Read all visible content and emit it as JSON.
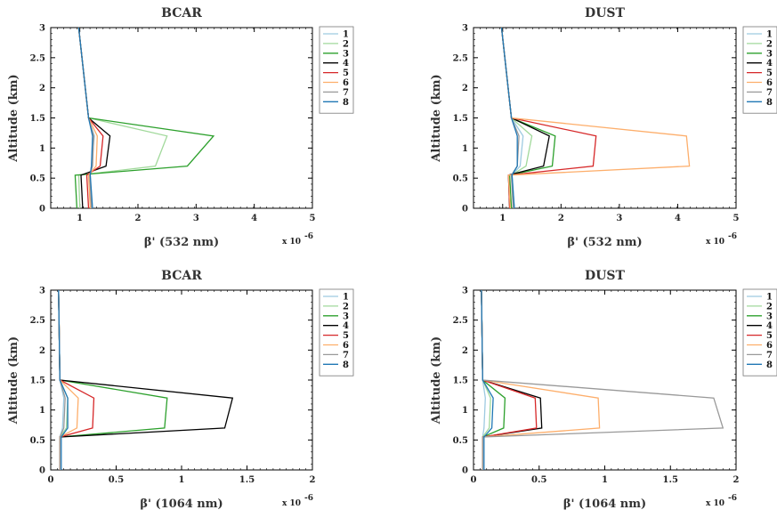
{
  "chart_data": [
    {
      "type": "line",
      "title": "BCAR",
      "xlabel": "β' (532 nm)",
      "ylabel": "Altitude (km)",
      "x_scale_label": "x 10",
      "x_scale_exp": "-6",
      "xlim": [
        0.5,
        5
      ],
      "ylim": [
        0,
        3
      ],
      "xticks": [
        1,
        2,
        3,
        4,
        5
      ],
      "yticks": [
        0,
        0.5,
        1,
        1.5,
        2,
        2.5,
        3
      ],
      "legend_position": "right",
      "series": [
        {
          "name": "1",
          "color": "#9ecae1",
          "points": [
            [
              1.2,
              0
            ],
            [
              1.18,
              0.55
            ],
            [
              1.2,
              0.7
            ],
            [
              1.25,
              1.2
            ],
            [
              1.15,
              1.5
            ],
            [
              0.98,
              3
            ]
          ]
        },
        {
          "name": "2",
          "color": "#a1d99b",
          "points": [
            [
              1.0,
              0
            ],
            [
              0.98,
              0.55
            ],
            [
              2.3,
              0.7
            ],
            [
              2.5,
              1.2
            ],
            [
              1.15,
              1.5
            ],
            [
              0.98,
              3
            ]
          ]
        },
        {
          "name": "3",
          "color": "#2ca02c",
          "points": [
            [
              0.95,
              0
            ],
            [
              0.92,
              0.55
            ],
            [
              2.85,
              0.7
            ],
            [
              3.3,
              1.2
            ],
            [
              1.15,
              1.5
            ],
            [
              0.98,
              3
            ]
          ]
        },
        {
          "name": "4",
          "color": "#000000",
          "points": [
            [
              1.05,
              0
            ],
            [
              1.02,
              0.55
            ],
            [
              1.45,
              0.7
            ],
            [
              1.52,
              1.2
            ],
            [
              1.15,
              1.5
            ],
            [
              0.98,
              3
            ]
          ]
        },
        {
          "name": "5",
          "color": "#d62728",
          "points": [
            [
              1.15,
              0
            ],
            [
              1.12,
              0.55
            ],
            [
              1.35,
              0.7
            ],
            [
              1.4,
              1.2
            ],
            [
              1.15,
              1.5
            ],
            [
              0.98,
              3
            ]
          ]
        },
        {
          "name": "6",
          "color": "#fdae6b",
          "points": [
            [
              1.18,
              0
            ],
            [
              1.15,
              0.55
            ],
            [
              1.28,
              0.7
            ],
            [
              1.3,
              1.2
            ],
            [
              1.15,
              1.5
            ],
            [
              0.98,
              3
            ]
          ]
        },
        {
          "name": "7",
          "color": "#999999",
          "points": [
            [
              1.2,
              0
            ],
            [
              1.17,
              0.55
            ],
            [
              1.22,
              0.7
            ],
            [
              1.24,
              1.2
            ],
            [
              1.15,
              1.5
            ],
            [
              0.98,
              3
            ]
          ]
        },
        {
          "name": "8",
          "color": "#1f77b4",
          "points": [
            [
              1.22,
              0
            ],
            [
              1.18,
              0.55
            ],
            [
              1.2,
              0.7
            ],
            [
              1.22,
              1.2
            ],
            [
              1.15,
              1.5
            ],
            [
              0.98,
              3
            ]
          ]
        }
      ]
    },
    {
      "type": "line",
      "title": "DUST",
      "xlabel": "β' (532 nm)",
      "ylabel": "Altitude (km)",
      "x_scale_label": "x 10",
      "x_scale_exp": "-6",
      "xlim": [
        0.5,
        5
      ],
      "ylim": [
        0,
        3
      ],
      "xticks": [
        1,
        2,
        3,
        4,
        5
      ],
      "yticks": [
        0,
        0.5,
        1,
        1.5,
        2,
        2.5,
        3
      ],
      "legend_position": "right",
      "series": [
        {
          "name": "1",
          "color": "#9ecae1",
          "points": [
            [
              1.2,
              0
            ],
            [
              1.16,
              0.55
            ],
            [
              1.3,
              0.7
            ],
            [
              1.35,
              1.2
            ],
            [
              1.15,
              1.5
            ],
            [
              0.98,
              3
            ]
          ]
        },
        {
          "name": "2",
          "color": "#a1d99b",
          "points": [
            [
              1.18,
              0
            ],
            [
              1.15,
              0.55
            ],
            [
              1.4,
              0.7
            ],
            [
              1.5,
              1.2
            ],
            [
              1.15,
              1.5
            ],
            [
              0.98,
              3
            ]
          ]
        },
        {
          "name": "3",
          "color": "#2ca02c",
          "points": [
            [
              1.15,
              0
            ],
            [
              1.12,
              0.55
            ],
            [
              1.85,
              0.7
            ],
            [
              1.9,
              1.2
            ],
            [
              1.15,
              1.5
            ],
            [
              0.98,
              3
            ]
          ]
        },
        {
          "name": "4",
          "color": "#000000",
          "points": [
            [
              1.12,
              0
            ],
            [
              1.1,
              0.55
            ],
            [
              1.7,
              0.7
            ],
            [
              1.8,
              1.2
            ],
            [
              1.15,
              1.5
            ],
            [
              0.98,
              3
            ]
          ]
        },
        {
          "name": "5",
          "color": "#d62728",
          "points": [
            [
              1.12,
              0
            ],
            [
              1.1,
              0.55
            ],
            [
              2.55,
              0.7
            ],
            [
              2.6,
              1.2
            ],
            [
              1.15,
              1.5
            ],
            [
              0.98,
              3
            ]
          ]
        },
        {
          "name": "6",
          "color": "#fdae6b",
          "points": [
            [
              1.13,
              0
            ],
            [
              1.1,
              0.55
            ],
            [
              4.2,
              0.7
            ],
            [
              4.15,
              1.2
            ],
            [
              1.15,
              1.5
            ],
            [
              0.98,
              3
            ]
          ]
        },
        {
          "name": "7",
          "color": "#999999",
          "points": [
            [
              1.18,
              0
            ],
            [
              1.15,
              0.55
            ],
            [
              1.25,
              0.7
            ],
            [
              1.28,
              1.2
            ],
            [
              1.15,
              1.5
            ],
            [
              0.98,
              3
            ]
          ]
        },
        {
          "name": "8",
          "color": "#1f77b4",
          "points": [
            [
              1.2,
              0
            ],
            [
              1.16,
              0.55
            ],
            [
              1.25,
              0.7
            ],
            [
              1.25,
              1.2
            ],
            [
              1.15,
              1.5
            ],
            [
              0.98,
              3
            ]
          ]
        }
      ]
    },
    {
      "type": "line",
      "title": "BCAR",
      "xlabel": "β' (1064 nm)",
      "ylabel": "Altitude (km)",
      "x_scale_label": "x 10",
      "x_scale_exp": "-6",
      "xlim": [
        0,
        2
      ],
      "ylim": [
        0,
        3
      ],
      "xticks": [
        0,
        0.5,
        1,
        1.5,
        2
      ],
      "yticks": [
        0,
        0.5,
        1,
        1.5,
        2,
        2.5,
        3
      ],
      "legend_position": "right",
      "series": [
        {
          "name": "1",
          "color": "#9ecae1",
          "points": [
            [
              0.07,
              0
            ],
            [
              0.07,
              0.55
            ],
            [
              0.09,
              0.7
            ],
            [
              0.1,
              1.2
            ],
            [
              0.07,
              1.5
            ],
            [
              0.06,
              3
            ]
          ]
        },
        {
          "name": "2",
          "color": "#a1d99b",
          "points": [
            [
              0.07,
              0
            ],
            [
              0.07,
              0.55
            ],
            [
              0.12,
              0.7
            ],
            [
              0.13,
              1.2
            ],
            [
              0.07,
              1.5
            ],
            [
              0.06,
              3
            ]
          ]
        },
        {
          "name": "3",
          "color": "#2ca02c",
          "points": [
            [
              0.07,
              0
            ],
            [
              0.07,
              0.55
            ],
            [
              0.87,
              0.7
            ],
            [
              0.89,
              1.2
            ],
            [
              0.07,
              1.5
            ],
            [
              0.06,
              3
            ]
          ]
        },
        {
          "name": "4",
          "color": "#000000",
          "points": [
            [
              0.07,
              0
            ],
            [
              0.07,
              0.55
            ],
            [
              1.33,
              0.7
            ],
            [
              1.39,
              1.2
            ],
            [
              0.07,
              1.5
            ],
            [
              0.06,
              3
            ]
          ]
        },
        {
          "name": "5",
          "color": "#d62728",
          "points": [
            [
              0.07,
              0
            ],
            [
              0.07,
              0.55
            ],
            [
              0.32,
              0.7
            ],
            [
              0.33,
              1.2
            ],
            [
              0.07,
              1.5
            ],
            [
              0.06,
              3
            ]
          ]
        },
        {
          "name": "6",
          "color": "#fdae6b",
          "points": [
            [
              0.07,
              0
            ],
            [
              0.07,
              0.55
            ],
            [
              0.2,
              0.7
            ],
            [
              0.21,
              1.2
            ],
            [
              0.07,
              1.5
            ],
            [
              0.06,
              3
            ]
          ]
        },
        {
          "name": "7",
          "color": "#999999",
          "points": [
            [
              0.07,
              0
            ],
            [
              0.07,
              0.55
            ],
            [
              0.1,
              0.7
            ],
            [
              0.11,
              1.2
            ],
            [
              0.07,
              1.5
            ],
            [
              0.06,
              3
            ]
          ]
        },
        {
          "name": "8",
          "color": "#1f77b4",
          "points": [
            [
              0.08,
              0
            ],
            [
              0.08,
              0.55
            ],
            [
              0.13,
              0.7
            ],
            [
              0.13,
              1.2
            ],
            [
              0.07,
              1.5
            ],
            [
              0.06,
              3
            ]
          ]
        }
      ]
    },
    {
      "type": "line",
      "title": "DUST",
      "xlabel": "β' (1064 nm)",
      "ylabel": "Altitude (km)",
      "x_scale_label": "x 10",
      "x_scale_exp": "-6",
      "xlim": [
        0,
        2
      ],
      "ylim": [
        0,
        3
      ],
      "xticks": [
        0,
        0.5,
        1,
        1.5,
        2
      ],
      "yticks": [
        0,
        0.5,
        1,
        1.5,
        2,
        2.5,
        3
      ],
      "legend_position": "right",
      "series": [
        {
          "name": "1",
          "color": "#9ecae1",
          "points": [
            [
              0.07,
              0
            ],
            [
              0.07,
              0.55
            ],
            [
              0.08,
              0.7
            ],
            [
              0.09,
              1.2
            ],
            [
              0.07,
              1.5
            ],
            [
              0.06,
              3
            ]
          ]
        },
        {
          "name": "2",
          "color": "#a1d99b",
          "points": [
            [
              0.07,
              0
            ],
            [
              0.07,
              0.55
            ],
            [
              0.12,
              0.7
            ],
            [
              0.13,
              1.2
            ],
            [
              0.07,
              1.5
            ],
            [
              0.06,
              3
            ]
          ]
        },
        {
          "name": "3",
          "color": "#2ca02c",
          "points": [
            [
              0.07,
              0
            ],
            [
              0.07,
              0.55
            ],
            [
              0.23,
              0.7
            ],
            [
              0.24,
              1.2
            ],
            [
              0.07,
              1.5
            ],
            [
              0.06,
              3
            ]
          ]
        },
        {
          "name": "4",
          "color": "#000000",
          "points": [
            [
              0.07,
              0
            ],
            [
              0.07,
              0.55
            ],
            [
              0.52,
              0.7
            ],
            [
              0.51,
              1.2
            ],
            [
              0.07,
              1.5
            ],
            [
              0.06,
              3
            ]
          ]
        },
        {
          "name": "5",
          "color": "#d62728",
          "points": [
            [
              0.07,
              0
            ],
            [
              0.07,
              0.55
            ],
            [
              0.48,
              0.7
            ],
            [
              0.47,
              1.2
            ],
            [
              0.07,
              1.5
            ],
            [
              0.06,
              3
            ]
          ]
        },
        {
          "name": "6",
          "color": "#fdae6b",
          "points": [
            [
              0.07,
              0
            ],
            [
              0.07,
              0.55
            ],
            [
              0.96,
              0.7
            ],
            [
              0.95,
              1.2
            ],
            [
              0.07,
              1.5
            ],
            [
              0.06,
              3
            ]
          ]
        },
        {
          "name": "7",
          "color": "#999999",
          "points": [
            [
              0.07,
              0
            ],
            [
              0.07,
              0.55
            ],
            [
              1.9,
              0.7
            ],
            [
              1.83,
              1.2
            ],
            [
              0.07,
              1.5
            ],
            [
              0.06,
              3
            ]
          ]
        },
        {
          "name": "8",
          "color": "#1f77b4",
          "points": [
            [
              0.08,
              0
            ],
            [
              0.08,
              0.55
            ],
            [
              0.14,
              0.7
            ],
            [
              0.15,
              1.2
            ],
            [
              0.07,
              1.5
            ],
            [
              0.06,
              3
            ]
          ]
        }
      ]
    }
  ]
}
